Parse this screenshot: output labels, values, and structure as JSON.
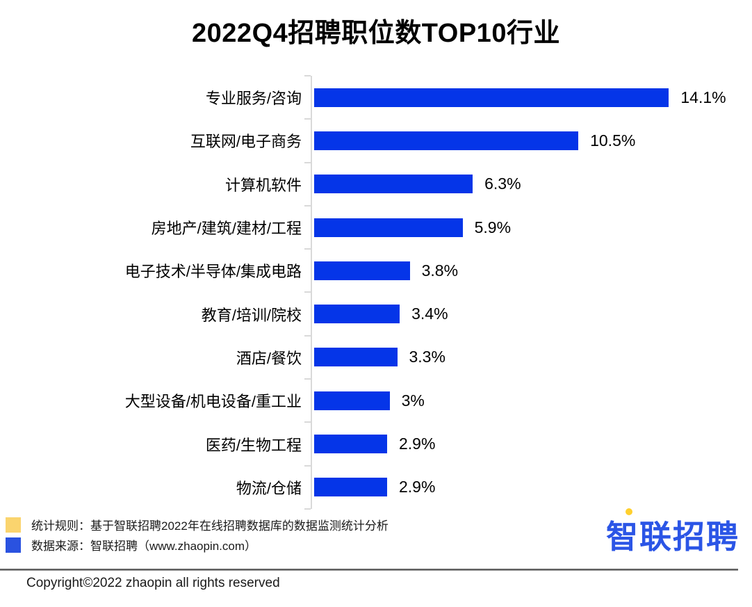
{
  "chart_data": {
    "type": "bar",
    "orientation": "horizontal",
    "title": "2022Q4招聘职位数TOP10行业",
    "categories": [
      "专业服务/咨询",
      "互联网/电子商务",
      "计算机软件",
      "房地产/建筑/建材/工程",
      "电子技术/半导体/集成电路",
      "教育/培训/院校",
      "酒店/餐饮",
      "大型设备/机电设备/重工业",
      "医药/生物工程",
      "物流/仓储"
    ],
    "values": [
      14.1,
      10.5,
      6.3,
      5.9,
      3.8,
      3.4,
      3.3,
      3,
      2.9,
      2.9
    ],
    "value_labels": [
      "14.1%",
      "10.5%",
      "6.3%",
      "5.9%",
      "3.8%",
      "3.4%",
      "3.3%",
      "3%",
      "2.9%",
      "2.9%"
    ],
    "bar_color": "#0535e8",
    "axis_color": "#d9d9d9",
    "xlim": [
      0,
      15
    ],
    "grid": false,
    "legend_position": "none",
    "value_label_position": "end-of-bar"
  },
  "footer": {
    "legend": [
      {
        "swatch_color": "#fad46e",
        "text": "统计规则：基于智联招聘2022年在线招聘数据库的数据监测统计分析"
      },
      {
        "swatch_color": "#2a52e0",
        "text": "数据来源：智联招聘（www.zhaopin.com）"
      }
    ],
    "logo": {
      "text": "智联招聘",
      "color": "#2b55e6",
      "accent_color": "#ffd02e"
    },
    "copyright": "Copyright©2022 zhaopin all rights reserved"
  }
}
